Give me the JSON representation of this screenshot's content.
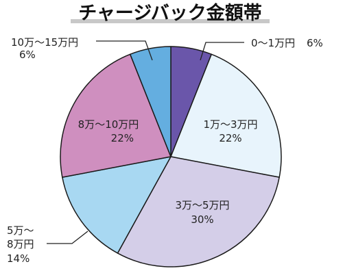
{
  "chart_data": {
    "type": "pie",
    "title": "チャージバック金額帯",
    "slices": [
      {
        "label": "0〜1万円",
        "value": 6,
        "value_label": "6%",
        "color": "#6a56aa"
      },
      {
        "label": "1万〜3万円",
        "value": 22,
        "value_label": "22%",
        "color": "#e8f4fc"
      },
      {
        "label": "3万〜5万円",
        "value": 30,
        "value_label": "30%",
        "color": "#d4cee8"
      },
      {
        "label_lines": [
          "5万〜",
          "8万円"
        ],
        "value": 14,
        "value_label": "14%",
        "color": "#a8d8f2"
      },
      {
        "label": "8万〜10万円",
        "value": 22,
        "value_label": "22%",
        "color": "#cf8fbf"
      },
      {
        "label": "10万〜15万円",
        "value": 6,
        "value_label": "6%",
        "color": "#64aee0"
      }
    ],
    "start_angle": "top",
    "direction": "clockwise",
    "legend": "none"
  }
}
